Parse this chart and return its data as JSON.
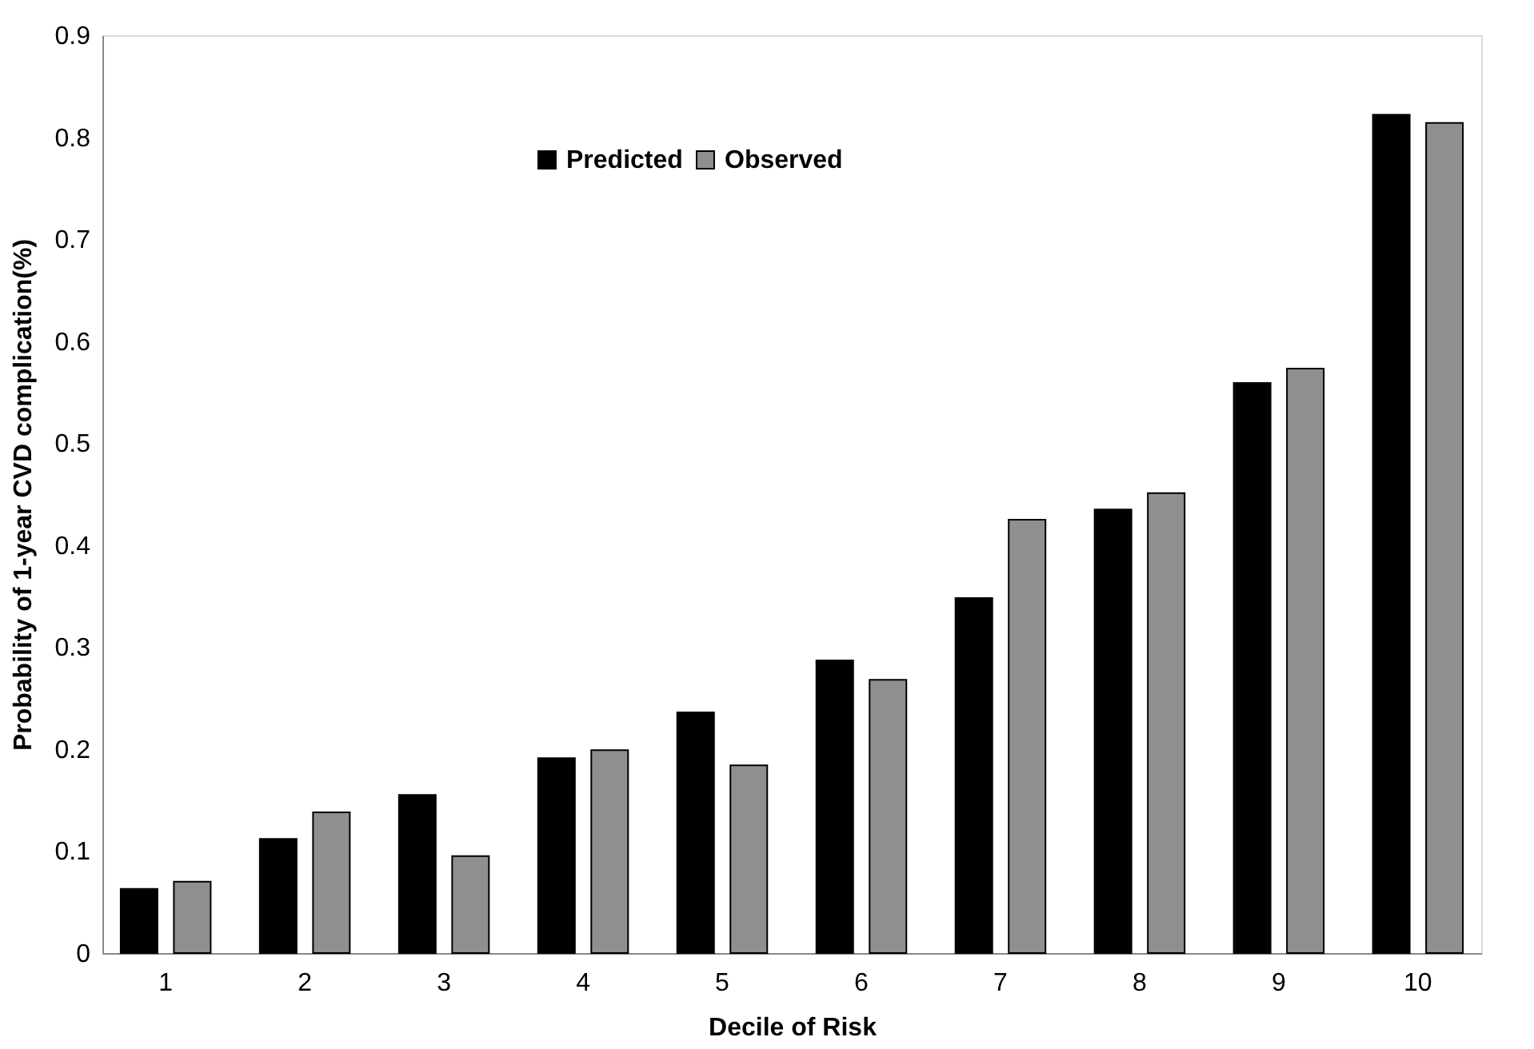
{
  "chart_data": {
    "type": "bar",
    "xlabel": "Decile of Risk",
    "ylabel": "Probability of 1-year CVD complication(%)",
    "categories": [
      "1",
      "2",
      "3",
      "4",
      "5",
      "6",
      "7",
      "8",
      "9",
      "10"
    ],
    "series": [
      {
        "name": "Predicted",
        "color": "#000000",
        "values": [
          0.063,
          0.112,
          0.155,
          0.191,
          0.236,
          0.287,
          0.348,
          0.435,
          0.559,
          0.822
        ]
      },
      {
        "name": "Observed",
        "color": "#8f8f8f",
        "values": [
          0.07,
          0.138,
          0.095,
          0.199,
          0.184,
          0.268,
          0.425,
          0.451,
          0.573,
          0.814
        ]
      }
    ],
    "ylim": [
      0,
      0.9
    ],
    "yticks": [
      0,
      0.1,
      0.2,
      0.3,
      0.4,
      0.5,
      0.6,
      0.7,
      0.8,
      0.9
    ],
    "grid": false,
    "legend": "top"
  }
}
